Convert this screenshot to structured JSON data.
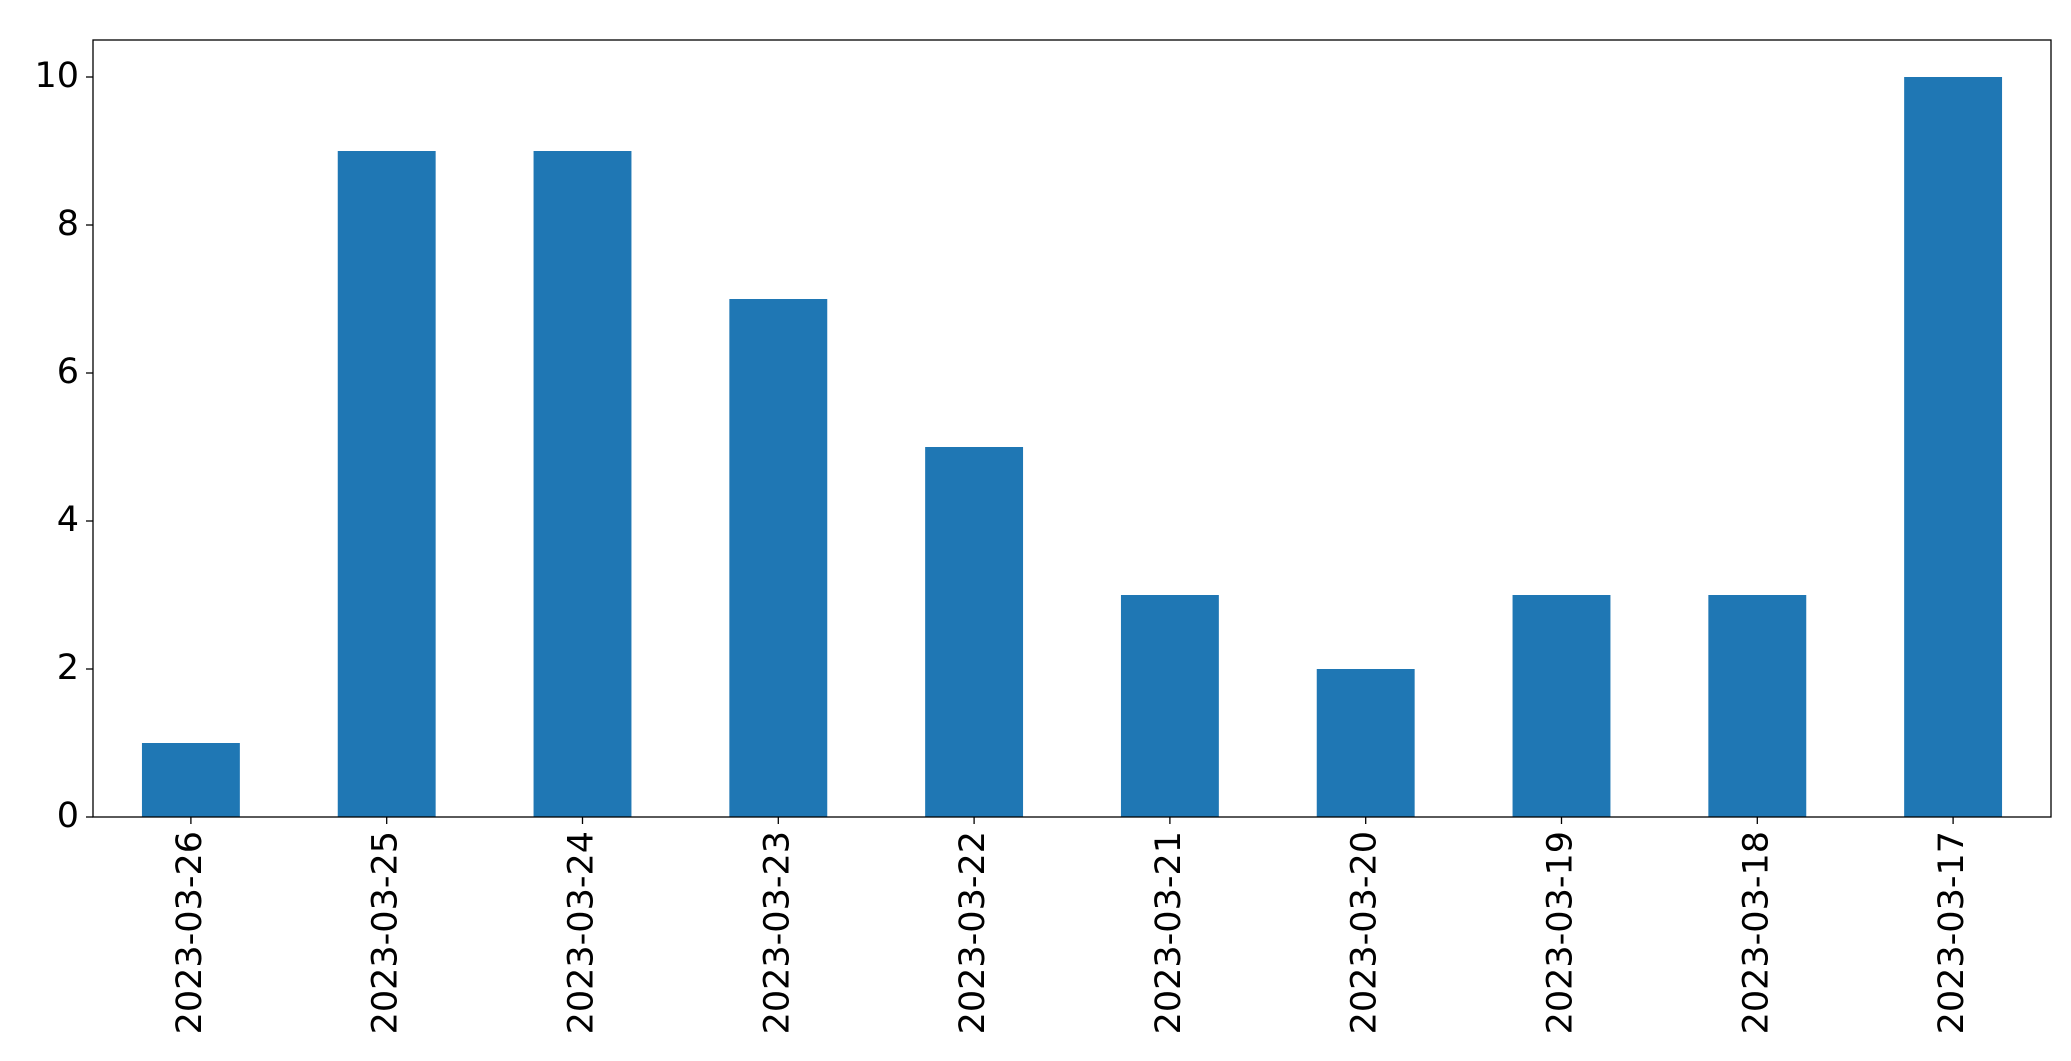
{
  "chart_data": {
    "type": "bar",
    "categories": [
      "2023-03-26",
      "2023-03-25",
      "2023-03-24",
      "2023-03-23",
      "2023-03-22",
      "2023-03-21",
      "2023-03-20",
      "2023-03-19",
      "2023-03-18",
      "2023-03-17"
    ],
    "values": [
      1,
      9,
      9,
      7,
      5,
      3,
      2,
      3,
      3,
      10
    ],
    "color": "#1f77b4",
    "ylim": [
      0,
      10.5
    ],
    "yticks": [
      0,
      2,
      4,
      6,
      8,
      10
    ],
    "grid": false
  }
}
